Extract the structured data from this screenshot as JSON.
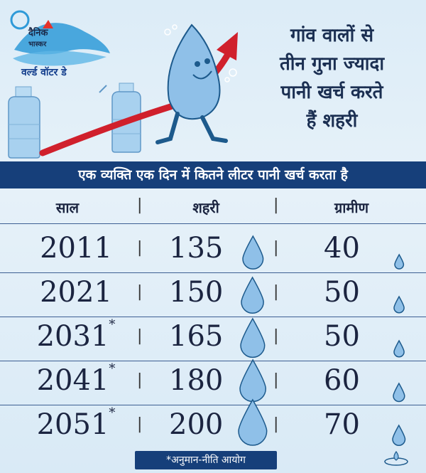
{
  "brand": {
    "logo_line1": "दैनिक",
    "logo_line2": "भास्कर",
    "event": "वर्ल्ड वॉटर डे"
  },
  "headline": [
    "गांव वालों से",
    "तीन गुना ज्यादा",
    "पानी खर्च करते",
    "हैं शहरी"
  ],
  "colors": {
    "navy": "#163f7a",
    "arrow_red": "#d0202c",
    "drop_fill": "#8fc0e8",
    "drop_stroke": "#1d5a8c",
    "bg": "#dcecf7"
  },
  "chart_data": {
    "type": "table",
    "title": "एक व्यक्ति एक दिन में कितने लीटर पानी खर्च करता है",
    "columns": [
      "साल",
      "शहरी",
      "ग्रामीण"
    ],
    "rows": [
      {
        "year": "2011",
        "projected": false,
        "urban": 135,
        "rural": 40
      },
      {
        "year": "2021",
        "projected": false,
        "urban": 150,
        "rural": 50
      },
      {
        "year": "2031",
        "projected": true,
        "urban": 165,
        "rural": 50
      },
      {
        "year": "2041",
        "projected": true,
        "urban": 180,
        "rural": 60
      },
      {
        "year": "2051",
        "projected": true,
        "urban": 200,
        "rural": 70
      }
    ],
    "footnote_marker": "*",
    "footnote": "*अनुमान-नीति आयोग"
  }
}
